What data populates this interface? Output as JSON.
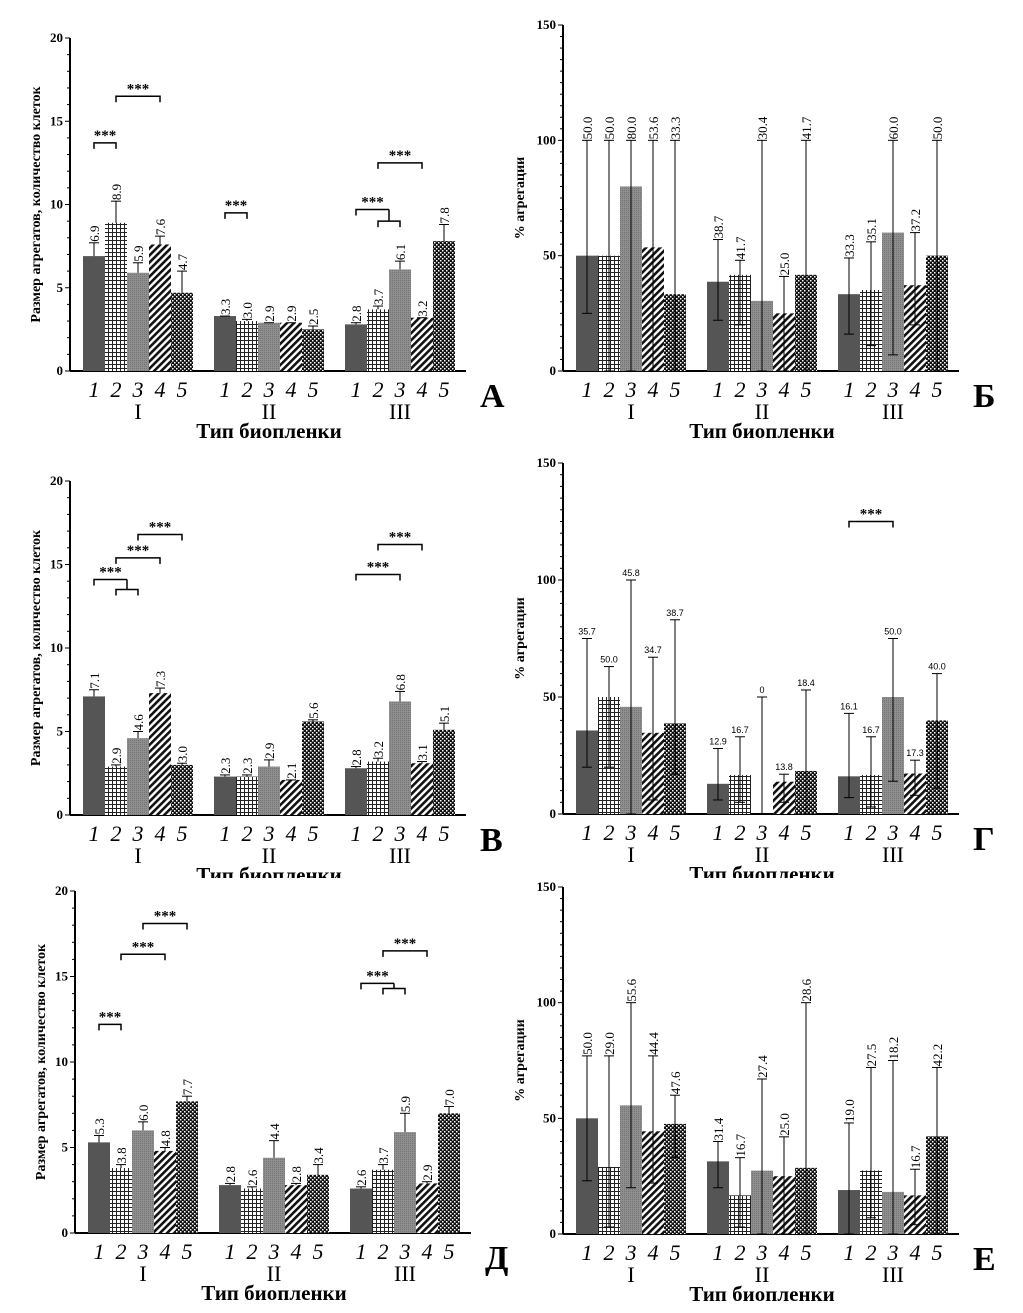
{
  "chart_data": [
    {
      "panel_letter": "А",
      "type": "bar",
      "style": "mean-error",
      "ylabel": "Размер агрегатов, количество клеток",
      "xlabel": "Тип биопленки",
      "ylim": [
        0,
        20
      ],
      "yticks": [
        "0",
        "5",
        "10",
        "15",
        "20"
      ],
      "groups": [
        "I",
        "II",
        "III"
      ],
      "categories": [
        "1",
        "2",
        "3",
        "4",
        "5"
      ],
      "values": [
        [
          6.9,
          8.9,
          5.9,
          7.6,
          4.7
        ],
        [
          3.3,
          3.0,
          2.9,
          2.9,
          2.5
        ],
        [
          2.8,
          3.7,
          6.1,
          3.2,
          7.8
        ]
      ],
      "labels": [
        [
          "6.9",
          "8.9",
          "5.9",
          "7.6",
          "4.7"
        ],
        [
          "3.3",
          "3.0",
          "2.9",
          "2.9",
          "2.5"
        ],
        [
          "2.8",
          "3.7",
          "6.1",
          "3.2",
          "7.8"
        ]
      ],
      "error_top": [
        [
          7.7,
          10.2,
          6.5,
          8.1,
          6.0
        ],
        [
          3.3,
          3.1,
          2.9,
          2.9,
          2.7
        ],
        [
          2.9,
          3.9,
          6.6,
          3.2,
          8.8
        ]
      ],
      "significance": [
        {
          "group": 0,
          "from": 1,
          "to": 2,
          "y": 13.7,
          "label": "***"
        },
        {
          "group": 0,
          "from": 2,
          "to": 4,
          "y": 16.5,
          "label": "***"
        },
        {
          "group": 1,
          "from": 1,
          "to": 2,
          "y": 9.5,
          "label": "***"
        },
        {
          "group": 2,
          "from": 1,
          "to": [
            2,
            3
          ],
          "y": 9.7,
          "sub_y": 9.0,
          "label": "***"
        },
        {
          "group": 2,
          "from": 2,
          "to": 4,
          "y": 12.5,
          "label": "***"
        }
      ]
    },
    {
      "panel_letter": "Б",
      "type": "bar",
      "style": "median-range",
      "ylabel": "% агрегации",
      "xlabel": "Тип биопленки",
      "ylim": [
        0,
        150
      ],
      "yticks": [
        "0",
        "50",
        "100",
        "150"
      ],
      "groups": [
        "I",
        "II",
        "III"
      ],
      "categories": [
        "1",
        "2",
        "3",
        "4",
        "5"
      ],
      "values": [
        [
          50.0,
          50.0,
          80.0,
          53.6,
          33.3
        ],
        [
          38.7,
          41.7,
          30.4,
          25.0,
          41.7
        ],
        [
          33.3,
          35.1,
          60.0,
          37.2,
          50.0
        ]
      ],
      "labels": [
        [
          "50.0",
          "50.0",
          "80.0",
          "53.6",
          "33.3"
        ],
        [
          "38.7",
          "41.7",
          "30.4",
          "25.0",
          "41.7"
        ],
        [
          "33.3",
          "35.1",
          "60.0",
          "37.2",
          "50.0"
        ]
      ],
      "range": [
        [
          [
            25,
            100
          ],
          [
            0,
            100
          ],
          [
            0,
            100
          ],
          [
            0,
            100
          ],
          [
            0,
            100
          ]
        ],
        [
          [
            22,
            57
          ],
          [
            20,
            48
          ],
          [
            0,
            100
          ],
          [
            0,
            41
          ],
          [
            0,
            100
          ]
        ],
        [
          [
            16,
            49
          ],
          [
            11,
            56
          ],
          [
            7,
            100
          ],
          [
            20,
            60
          ],
          [
            0,
            100
          ]
        ]
      ],
      "significance": []
    },
    {
      "panel_letter": "В",
      "type": "bar",
      "style": "mean-error",
      "ylabel": "Размер агрегатов, количество клеток",
      "xlabel": "Тип биопленки",
      "ylim": [
        0,
        20
      ],
      "yticks": [
        "0",
        "5",
        "10",
        "15",
        "20"
      ],
      "groups": [
        "I",
        "II",
        "III"
      ],
      "categories": [
        "1",
        "2",
        "3",
        "4",
        "5"
      ],
      "values": [
        [
          7.1,
          2.9,
          4.6,
          7.3,
          3.0
        ],
        [
          2.3,
          2.3,
          2.9,
          2.1,
          5.6
        ],
        [
          2.8,
          3.2,
          6.8,
          3.1,
          5.1
        ]
      ],
      "labels": [
        [
          "7.1",
          "2.9",
          "4.6",
          "7.3",
          "3.0"
        ],
        [
          "2.3",
          "2.3",
          "2.9",
          "2.1",
          "5.6"
        ],
        [
          "2.8",
          "3.2",
          "6.8",
          "3.1",
          "5.1"
        ]
      ],
      "error_top": [
        [
          7.5,
          3.0,
          5.0,
          7.6,
          3.1
        ],
        [
          2.4,
          2.4,
          3.3,
          2.1,
          5.7
        ],
        [
          2.9,
          3.4,
          7.4,
          3.2,
          5.5
        ]
      ],
      "significance": [
        {
          "group": 0,
          "from": 1,
          "to": [
            2,
            3
          ],
          "y": 14.1,
          "sub_y": 13.5,
          "label": "***"
        },
        {
          "group": 0,
          "from": 2,
          "to": 4,
          "y": 15.4,
          "label": "***"
        },
        {
          "group": 0,
          "from": 3,
          "to": 5,
          "y": 16.8,
          "label": "***"
        },
        {
          "group": 2,
          "from": 1,
          "to": 3,
          "y": 14.4,
          "label": "***"
        },
        {
          "group": 2,
          "from": 2,
          "to": 4,
          "y": 16.2,
          "label": "***"
        }
      ]
    },
    {
      "panel_letter": "Г",
      "type": "bar",
      "style": "median-range-small",
      "ylabel": "% агрегации",
      "xlabel": "Тип биопленки",
      "ylim": [
        0,
        150
      ],
      "yticks": [
        "0",
        "50",
        "100",
        "150"
      ],
      "groups": [
        "I",
        "II",
        "III"
      ],
      "categories": [
        "1",
        "2",
        "3",
        "4",
        "5"
      ],
      "values": [
        [
          35.7,
          50.0,
          45.8,
          34.7,
          38.7
        ],
        [
          12.9,
          16.7,
          0,
          13.8,
          18.4
        ],
        [
          16.1,
          16.7,
          50.0,
          17.3,
          40.0
        ]
      ],
      "labels": [
        [
          "35.7",
          "50.0",
          "45.8",
          "34.7",
          "38.7"
        ],
        [
          "12.9",
          "16.7",
          "0",
          "13.8",
          "18.4"
        ],
        [
          "16.1",
          "16.7",
          "50.0",
          "17.3",
          "40.0"
        ]
      ],
      "range": [
        [
          [
            20,
            75
          ],
          [
            20,
            63
          ],
          [
            0,
            100
          ],
          [
            6,
            67
          ],
          [
            17,
            83
          ]
        ],
        [
          [
            6,
            28
          ],
          [
            5,
            33
          ],
          [
            0,
            50
          ],
          [
            5,
            17
          ],
          [
            0,
            53
          ]
        ],
        [
          [
            7,
            43
          ],
          [
            3,
            33
          ],
          [
            14,
            75
          ],
          [
            8,
            23
          ],
          [
            11,
            60
          ]
        ]
      ],
      "significance": [
        {
          "group": 2,
          "from": 1,
          "to": 3,
          "y": 125,
          "label": "***"
        }
      ]
    },
    {
      "panel_letter": "Д",
      "type": "bar",
      "style": "mean-error",
      "ylabel": "Размер агрегатов, количество клеток",
      "xlabel": "Тип биопленки",
      "ylim": [
        0,
        20
      ],
      "yticks": [
        "0",
        "5",
        "10",
        "15",
        "20"
      ],
      "groups": [
        "I",
        "II",
        "III"
      ],
      "categories": [
        "1",
        "2",
        "3",
        "4",
        "5"
      ],
      "values": [
        [
          5.3,
          3.8,
          6.0,
          4.8,
          7.7
        ],
        [
          2.8,
          2.6,
          4.4,
          2.8,
          3.4
        ],
        [
          2.6,
          3.7,
          5.9,
          2.9,
          7.0
        ]
      ],
      "labels": [
        [
          "5.3",
          "3.8",
          "6.0",
          "4.8",
          "7.7"
        ],
        [
          "2.8",
          "2.6",
          "4.4",
          "2.8",
          "3.4"
        ],
        [
          "2.6",
          "3.7",
          "5.9",
          "2.9",
          "7.0"
        ]
      ],
      "error_top": [
        [
          5.7,
          4.0,
          6.5,
          5.0,
          8.0
        ],
        [
          2.9,
          2.7,
          5.4,
          2.9,
          4.0
        ],
        [
          2.7,
          4.0,
          7.0,
          3.0,
          7.4
        ]
      ],
      "significance": [
        {
          "group": 0,
          "from": 1,
          "to": 2,
          "y": 12.2,
          "label": "***"
        },
        {
          "group": 0,
          "from": 2,
          "to": 4,
          "y": 16.3,
          "label": "***"
        },
        {
          "group": 0,
          "from": 3,
          "to": 5,
          "y": 18.1,
          "label": "***"
        },
        {
          "group": 2,
          "from": 1,
          "to": [
            2,
            3
          ],
          "y": 14.6,
          "sub_y": 14.3,
          "label": "***"
        },
        {
          "group": 2,
          "from": 2,
          "to": 4,
          "y": 16.5,
          "label": "***"
        }
      ]
    },
    {
      "panel_letter": "Е",
      "type": "bar",
      "style": "median-range",
      "ylabel": "% агрегации",
      "xlabel": "Тип биопленки",
      "ylim": [
        0,
        150
      ],
      "yticks": [
        "0",
        "50",
        "100",
        "150"
      ],
      "groups": [
        "I",
        "II",
        "III"
      ],
      "categories": [
        "1",
        "2",
        "3",
        "4",
        "5"
      ],
      "values": [
        [
          50.0,
          29.0,
          55.6,
          44.4,
          47.6
        ],
        [
          31.4,
          16.7,
          27.4,
          25.0,
          28.6
        ],
        [
          19.0,
          27.5,
          18.2,
          16.7,
          42.2
        ]
      ],
      "labels": [
        [
          "50.0",
          "29.0",
          "55.6",
          "44.4",
          "47.6"
        ],
        [
          "31.4",
          "16.7",
          "27.4",
          "25.0",
          "28.6"
        ],
        [
          "19.0",
          "27.5",
          "18.2",
          "16.7",
          "42.2"
        ]
      ],
      "range": [
        [
          [
            23,
            77
          ],
          [
            3,
            77
          ],
          [
            20,
            100
          ],
          [
            22,
            77
          ],
          [
            33,
            60
          ]
        ],
        [
          [
            20,
            40
          ],
          [
            3,
            33
          ],
          [
            0,
            67
          ],
          [
            0,
            42
          ],
          [
            0,
            100
          ]
        ],
        [
          [
            0,
            48
          ],
          [
            7,
            72
          ],
          [
            0,
            75
          ],
          [
            4,
            28
          ],
          [
            0,
            72
          ]
        ]
      ],
      "significance": []
    }
  ],
  "colors": {
    "bar1": "#555555",
    "bar3": "#8a8a8a",
    "axis": "#000000",
    "background": "#ffffff"
  }
}
